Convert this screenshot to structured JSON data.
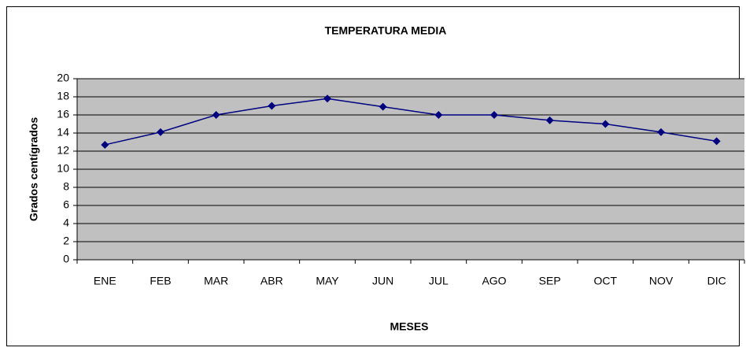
{
  "chart_data": {
    "type": "line",
    "title": "TEMPERATURA MEDIA",
    "x_label": "MESES",
    "y_label": "Grados centígrados",
    "categories": [
      "ENE",
      "FEB",
      "MAR",
      "ABR",
      "MAY",
      "JUN",
      "JUL",
      "AGO",
      "SEP",
      "OCT",
      "NOV",
      "DIC"
    ],
    "series": [
      {
        "name": "Temperatura media",
        "color": "#000080",
        "values": [
          12.7,
          14.1,
          16.0,
          17.0,
          17.8,
          16.9,
          16.0,
          16.0,
          15.4,
          15.0,
          14.1,
          13.1
        ]
      }
    ],
    "ylim": [
      0,
      20
    ],
    "yticks": [
      0,
      2,
      4,
      6,
      8,
      10,
      12,
      14,
      16,
      18,
      20
    ],
    "grid": true
  }
}
